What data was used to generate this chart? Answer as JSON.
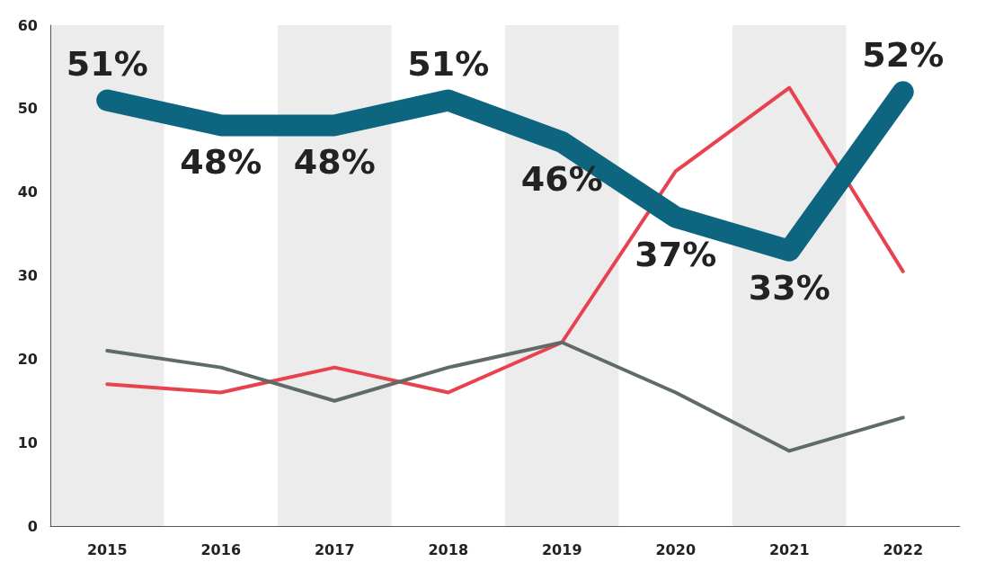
{
  "chart_data": {
    "type": "line",
    "categories": [
      "2015",
      "2016",
      "2017",
      "2018",
      "2019",
      "2020",
      "2021",
      "2022"
    ],
    "series": [
      {
        "color": "#e8424f",
        "values": [
          17,
          16,
          19,
          16,
          22,
          42.5,
          52.5,
          30.5
        ]
      },
      {
        "color": "#5f6b66",
        "values": [
          21,
          19,
          15,
          19,
          22,
          16,
          9,
          13
        ]
      },
      {
        "color": "#0e6580",
        "values": [
          51,
          48,
          48,
          51,
          46,
          37,
          33,
          52
        ],
        "value_labels": [
          "51%",
          "48%",
          "48%",
          "51%",
          "46%",
          "37%",
          "33%",
          "52%"
        ]
      }
    ],
    "ylim": [
      0,
      60
    ],
    "yticks": [
      0,
      10,
      20,
      30,
      40,
      50,
      60
    ],
    "grid": false,
    "bands": [
      {
        "axis": "x",
        "from": "2015",
        "to": "2015",
        "color": "#ececec"
      },
      {
        "axis": "x",
        "from": "2017",
        "to": "2017",
        "color": "#ececec"
      },
      {
        "axis": "x",
        "from": "2019",
        "to": "2019",
        "color": "#ececec"
      },
      {
        "axis": "x",
        "from": "2021",
        "to": "2021",
        "color": "#ececec"
      }
    ]
  }
}
